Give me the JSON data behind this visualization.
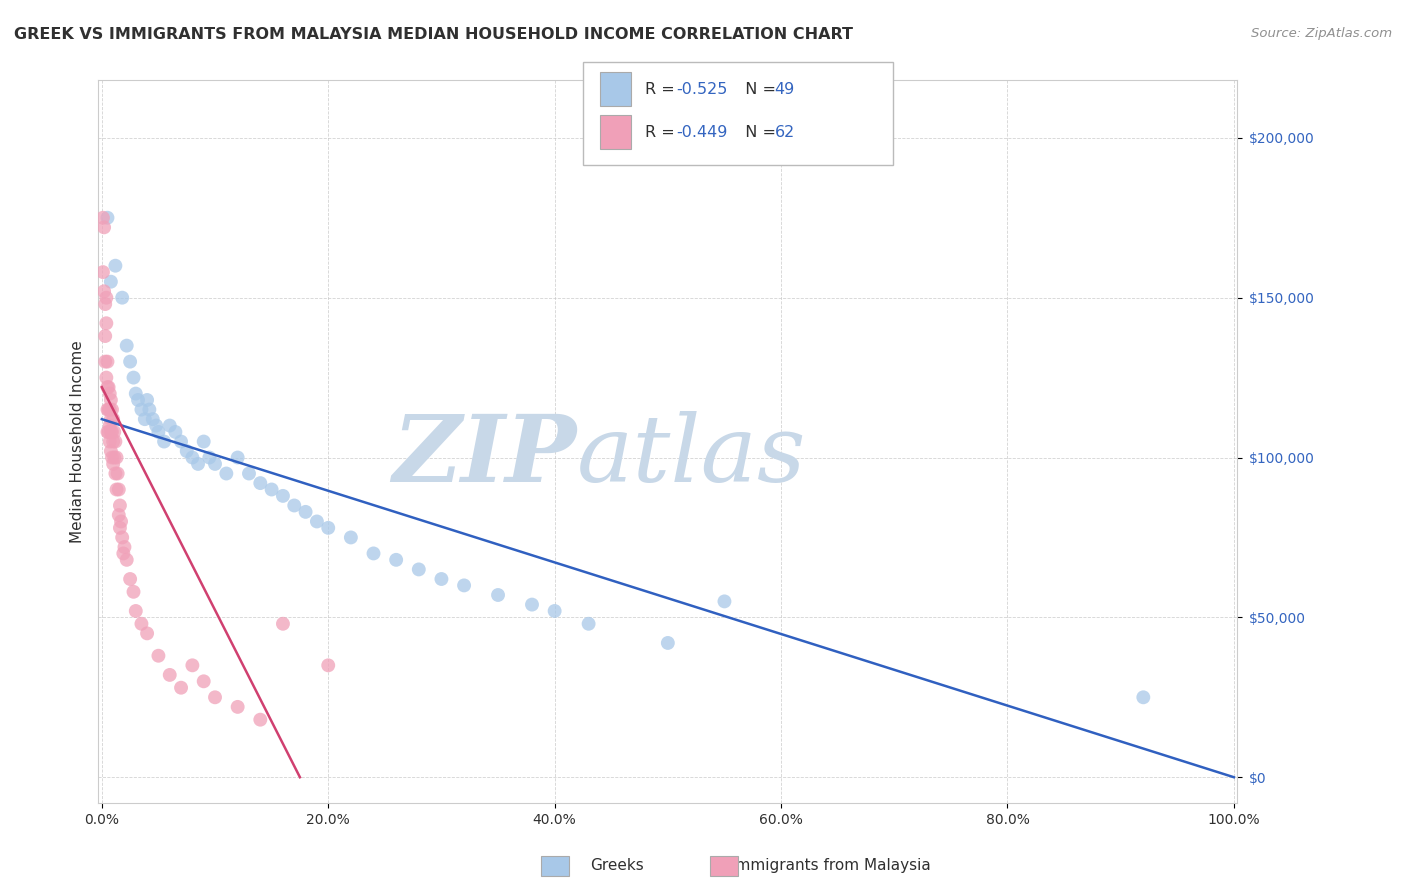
{
  "title": "GREEK VS IMMIGRANTS FROM MALAYSIA MEDIAN HOUSEHOLD INCOME CORRELATION CHART",
  "source": "Source: ZipAtlas.com",
  "ylabel": "Median Household Income",
  "watermark_zip": "ZIP",
  "watermark_atlas": "atlas",
  "legend_r1_label": "R = ",
  "legend_r1_val": "-0.525",
  "legend_n1_label": "N = ",
  "legend_n1_val": "49",
  "legend_r2_label": "R = ",
  "legend_r2_val": "-0.449",
  "legend_n2_label": "N = ",
  "legend_n2_val": "62",
  "legend_label1": "Greeks",
  "legend_label2": "Immigrants from Malaysia",
  "blue_color": "#a8c8e8",
  "pink_color": "#f0a0b8",
  "blue_line_color": "#3060c0",
  "pink_line_color": "#d04070",
  "title_color": "#303030",
  "source_color": "#909090",
  "accent_color": "#3465c0",
  "text_color": "#303030",
  "watermark_color_zip": "#c8d8e8",
  "watermark_color_atlas": "#c8d8e8",
  "background_color": "#ffffff",
  "grid_color": "#c8c8c8",
  "xlim": [
    -0.003,
    1.003
  ],
  "ylim": [
    -8000,
    218000
  ],
  "xticks": [
    0.0,
    0.2,
    0.4,
    0.6,
    0.8,
    1.0
  ],
  "xtick_labels": [
    "0.0%",
    "20.0%",
    "40.0%",
    "60.0%",
    "80.0%",
    "100.0%"
  ],
  "yticks": [
    0,
    50000,
    100000,
    150000,
    200000
  ],
  "ytick_labels": [
    "$0",
    "$50,000",
    "$100,000",
    "$150,000",
    "$200,000"
  ],
  "blue_scatter_x": [
    0.005,
    0.008,
    0.012,
    0.018,
    0.022,
    0.025,
    0.028,
    0.03,
    0.032,
    0.035,
    0.038,
    0.04,
    0.042,
    0.045,
    0.048,
    0.05,
    0.055,
    0.06,
    0.065,
    0.07,
    0.075,
    0.08,
    0.085,
    0.09,
    0.095,
    0.1,
    0.11,
    0.12,
    0.13,
    0.14,
    0.15,
    0.16,
    0.17,
    0.18,
    0.19,
    0.2,
    0.22,
    0.24,
    0.26,
    0.28,
    0.3,
    0.32,
    0.35,
    0.38,
    0.4,
    0.43,
    0.5,
    0.55,
    0.92
  ],
  "blue_scatter_y": [
    175000,
    155000,
    160000,
    150000,
    135000,
    130000,
    125000,
    120000,
    118000,
    115000,
    112000,
    118000,
    115000,
    112000,
    110000,
    108000,
    105000,
    110000,
    108000,
    105000,
    102000,
    100000,
    98000,
    105000,
    100000,
    98000,
    95000,
    100000,
    95000,
    92000,
    90000,
    88000,
    85000,
    83000,
    80000,
    78000,
    75000,
    70000,
    68000,
    65000,
    62000,
    60000,
    57000,
    54000,
    52000,
    48000,
    42000,
    55000,
    25000
  ],
  "pink_scatter_x": [
    0.001,
    0.001,
    0.002,
    0.002,
    0.003,
    0.003,
    0.003,
    0.004,
    0.004,
    0.004,
    0.005,
    0.005,
    0.005,
    0.005,
    0.006,
    0.006,
    0.006,
    0.007,
    0.007,
    0.007,
    0.007,
    0.008,
    0.008,
    0.008,
    0.008,
    0.009,
    0.009,
    0.009,
    0.01,
    0.01,
    0.01,
    0.011,
    0.011,
    0.012,
    0.012,
    0.013,
    0.013,
    0.014,
    0.015,
    0.015,
    0.016,
    0.016,
    0.017,
    0.018,
    0.019,
    0.02,
    0.022,
    0.025,
    0.028,
    0.03,
    0.035,
    0.04,
    0.05,
    0.06,
    0.07,
    0.08,
    0.09,
    0.1,
    0.12,
    0.14,
    0.16,
    0.2
  ],
  "pink_scatter_y": [
    175000,
    158000,
    172000,
    152000,
    148000,
    138000,
    130000,
    150000,
    142000,
    125000,
    130000,
    122000,
    115000,
    108000,
    122000,
    115000,
    108000,
    120000,
    115000,
    110000,
    105000,
    118000,
    112000,
    108000,
    102000,
    115000,
    108000,
    100000,
    112000,
    105000,
    98000,
    108000,
    100000,
    105000,
    95000,
    100000,
    90000,
    95000,
    90000,
    82000,
    85000,
    78000,
    80000,
    75000,
    70000,
    72000,
    68000,
    62000,
    58000,
    52000,
    48000,
    45000,
    38000,
    32000,
    28000,
    35000,
    30000,
    25000,
    22000,
    18000,
    48000,
    35000
  ],
  "blue_line_x": [
    0.0,
    1.0
  ],
  "blue_line_y": [
    112000,
    0
  ],
  "pink_line_x": [
    0.0,
    0.175
  ],
  "pink_line_y": [
    122000,
    0
  ],
  "figsize": [
    14.06,
    8.92
  ],
  "dpi": 100
}
